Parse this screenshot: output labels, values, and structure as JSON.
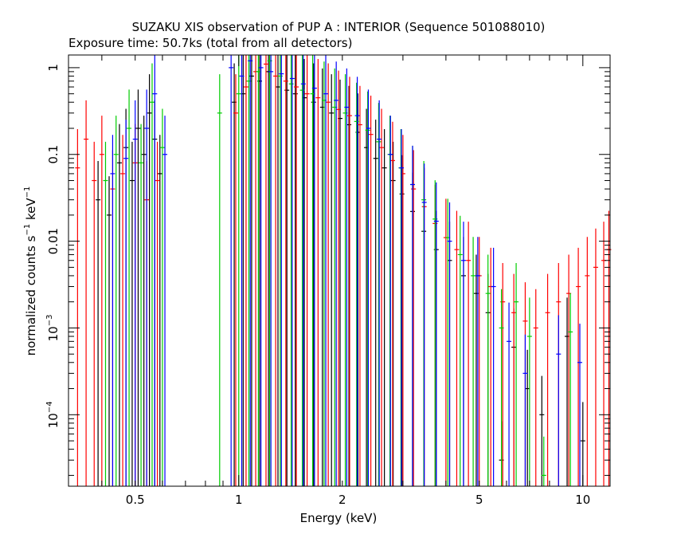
{
  "chart_data": {
    "type": "scatter",
    "title": "SUZAKU XIS observation of PUP A : INTERIOR (Sequence 501088010)",
    "subtitle": "Exposure time: 50.7ks (total from all detectors)",
    "xlabel": "Energy (keV)",
    "ylabel_main": "normalized counts s",
    "ylabel_exp1": "−1",
    "ylabel_mid": " keV",
    "ylabel_exp2": "−1",
    "xscale": "log",
    "yscale": "log",
    "xlim": [
      0.32,
      12
    ],
    "ylim": [
      1.5e-05,
      1.4
    ],
    "x_ticks": [
      {
        "value": 0.5,
        "label": "0.5"
      },
      {
        "value": 1,
        "label": "1"
      },
      {
        "value": 2,
        "label": "2"
      },
      {
        "value": 5,
        "label": "5"
      },
      {
        "value": 10,
        "label": "10"
      }
    ],
    "y_ticks": [
      {
        "value": 1,
        "label": "1"
      },
      {
        "value": 0.1,
        "label": "0.1"
      },
      {
        "value": 0.01,
        "label": "0.01"
      },
      {
        "value": 0.001,
        "label_base": "10",
        "label_exp": "−3"
      },
      {
        "value": 0.0001,
        "label_base": "10",
        "label_exp": "−4"
      }
    ],
    "grid": false,
    "series": [
      {
        "color": "#000000",
        "points": [
          [
            0.39,
            0.03
          ],
          [
            0.42,
            0.02
          ],
          [
            0.45,
            0.08
          ],
          [
            0.47,
            0.12
          ],
          [
            0.49,
            0.05
          ],
          [
            0.51,
            0.2
          ],
          [
            0.53,
            0.1
          ],
          [
            0.55,
            0.3
          ],
          [
            0.57,
            0.15
          ],
          [
            0.59,
            0.06
          ],
          [
            0.97,
            0.4
          ],
          [
            1.03,
            0.5
          ],
          [
            1.09,
            0.8
          ],
          [
            1.15,
            0.7
          ],
          [
            1.22,
            0.9
          ],
          [
            1.3,
            0.6
          ],
          [
            1.38,
            0.55
          ],
          [
            1.46,
            0.5
          ],
          [
            1.55,
            0.45
          ],
          [
            1.65,
            0.4
          ],
          [
            1.75,
            0.35
          ],
          [
            1.86,
            0.3
          ],
          [
            1.97,
            0.26
          ],
          [
            2.09,
            0.22
          ],
          [
            2.22,
            0.18
          ],
          [
            2.35,
            0.12
          ],
          [
            2.5,
            0.09
          ],
          [
            2.65,
            0.07
          ],
          [
            2.81,
            0.05
          ],
          [
            2.98,
            0.035
          ],
          [
            3.2,
            0.022
          ],
          [
            3.45,
            0.013
          ],
          [
            3.75,
            0.008
          ],
          [
            4.1,
            0.006
          ],
          [
            4.5,
            0.004
          ],
          [
            4.9,
            0.0025
          ],
          [
            5.3,
            0.0015
          ],
          [
            5.8,
            3e-05
          ],
          [
            6.3,
            0.0006
          ],
          [
            6.9,
            0.0002
          ],
          [
            7.6,
            0.0001
          ],
          [
            9.0,
            0.0008
          ],
          [
            10.0,
            5e-05
          ]
        ]
      },
      {
        "color": "#ff0000",
        "points": [
          [
            0.34,
            0.07
          ],
          [
            0.36,
            0.15
          ],
          [
            0.38,
            0.05
          ],
          [
            0.4,
            0.1
          ],
          [
            0.43,
            0.04
          ],
          [
            0.46,
            0.06
          ],
          [
            0.5,
            0.08
          ],
          [
            0.54,
            0.03
          ],
          [
            0.58,
            0.05
          ],
          [
            0.98,
            0.3
          ],
          [
            1.05,
            0.6
          ],
          [
            1.12,
            0.9
          ],
          [
            1.2,
            1.1
          ],
          [
            1.28,
            0.8
          ],
          [
            1.37,
            0.7
          ],
          [
            1.47,
            0.6
          ],
          [
            1.58,
            0.5
          ],
          [
            1.7,
            0.45
          ],
          [
            1.82,
            0.4
          ],
          [
            1.95,
            0.33
          ],
          [
            2.1,
            0.28
          ],
          [
            2.25,
            0.22
          ],
          [
            2.42,
            0.17
          ],
          [
            2.6,
            0.12
          ],
          [
            2.8,
            0.085
          ],
          [
            3.0,
            0.06
          ],
          [
            3.22,
            0.04
          ],
          [
            3.46,
            0.025
          ],
          [
            3.72,
            0.016
          ],
          [
            4.0,
            0.011
          ],
          [
            4.3,
            0.008
          ],
          [
            4.65,
            0.006
          ],
          [
            5.0,
            0.004
          ],
          [
            5.4,
            0.003
          ],
          [
            5.85,
            0.002
          ],
          [
            6.3,
            0.0015
          ],
          [
            6.8,
            0.0012
          ],
          [
            7.3,
            0.001
          ],
          [
            7.9,
            0.0015
          ],
          [
            8.5,
            0.002
          ],
          [
            9.1,
            0.0025
          ],
          [
            9.7,
            0.003
          ],
          [
            10.3,
            0.004
          ],
          [
            10.9,
            0.005
          ],
          [
            11.5,
            0.006
          ],
          [
            11.9,
            0.008
          ]
        ]
      },
      {
        "color": "#00cc00",
        "points": [
          [
            0.41,
            0.05
          ],
          [
            0.44,
            0.1
          ],
          [
            0.48,
            0.2
          ],
          [
            0.52,
            0.08
          ],
          [
            0.56,
            0.4
          ],
          [
            0.6,
            0.12
          ],
          [
            0.88,
            0.3
          ],
          [
            1.0,
            0.5
          ],
          [
            1.07,
            0.7
          ],
          [
            1.14,
            0.9
          ],
          [
            1.23,
            1.2
          ],
          [
            1.32,
            0.8
          ],
          [
            1.42,
            0.65
          ],
          [
            1.53,
            0.55
          ],
          [
            1.64,
            0.5
          ],
          [
            1.77,
            0.42
          ],
          [
            1.9,
            0.35
          ],
          [
            2.04,
            0.3
          ],
          [
            2.2,
            0.24
          ],
          [
            2.37,
            0.19
          ],
          [
            2.55,
            0.14
          ],
          [
            2.75,
            0.1
          ],
          [
            2.96,
            0.07
          ],
          [
            3.2,
            0.045
          ],
          [
            3.45,
            0.03
          ],
          [
            3.72,
            0.018
          ],
          [
            4.05,
            0.011
          ],
          [
            4.4,
            0.007
          ],
          [
            4.8,
            0.004
          ],
          [
            5.3,
            0.0025
          ],
          [
            5.8,
            0.001
          ],
          [
            6.4,
            0.002
          ],
          [
            7.0,
            0.0008
          ],
          [
            7.7,
            2e-05
          ],
          [
            9.2,
            0.0009
          ]
        ]
      },
      {
        "color": "#0000ff",
        "points": [
          [
            0.43,
            0.06
          ],
          [
            0.47,
            0.09
          ],
          [
            0.5,
            0.15
          ],
          [
            0.54,
            0.2
          ],
          [
            0.57,
            0.5
          ],
          [
            0.61,
            0.1
          ],
          [
            0.95,
            1.0
          ],
          [
            1.02,
            0.8
          ],
          [
            1.08,
            1.2
          ],
          [
            1.16,
            1.0
          ],
          [
            1.24,
            0.9
          ],
          [
            1.33,
            0.85
          ],
          [
            1.43,
            0.75
          ],
          [
            1.54,
            0.65
          ],
          [
            1.66,
            0.58
          ],
          [
            1.79,
            0.5
          ],
          [
            1.92,
            0.42
          ],
          [
            2.06,
            0.35
          ],
          [
            2.21,
            0.28
          ],
          [
            2.38,
            0.2
          ],
          [
            2.56,
            0.15
          ],
          [
            2.76,
            0.1
          ],
          [
            2.97,
            0.07
          ],
          [
            3.2,
            0.045
          ],
          [
            3.46,
            0.028
          ],
          [
            3.75,
            0.017
          ],
          [
            4.1,
            0.01
          ],
          [
            4.5,
            0.006
          ],
          [
            4.95,
            0.004
          ],
          [
            5.5,
            0.003
          ],
          [
            6.1,
            0.0007
          ],
          [
            6.8,
            0.0003
          ],
          [
            8.5,
            0.0005
          ],
          [
            9.8,
            0.0004
          ]
        ]
      }
    ]
  }
}
